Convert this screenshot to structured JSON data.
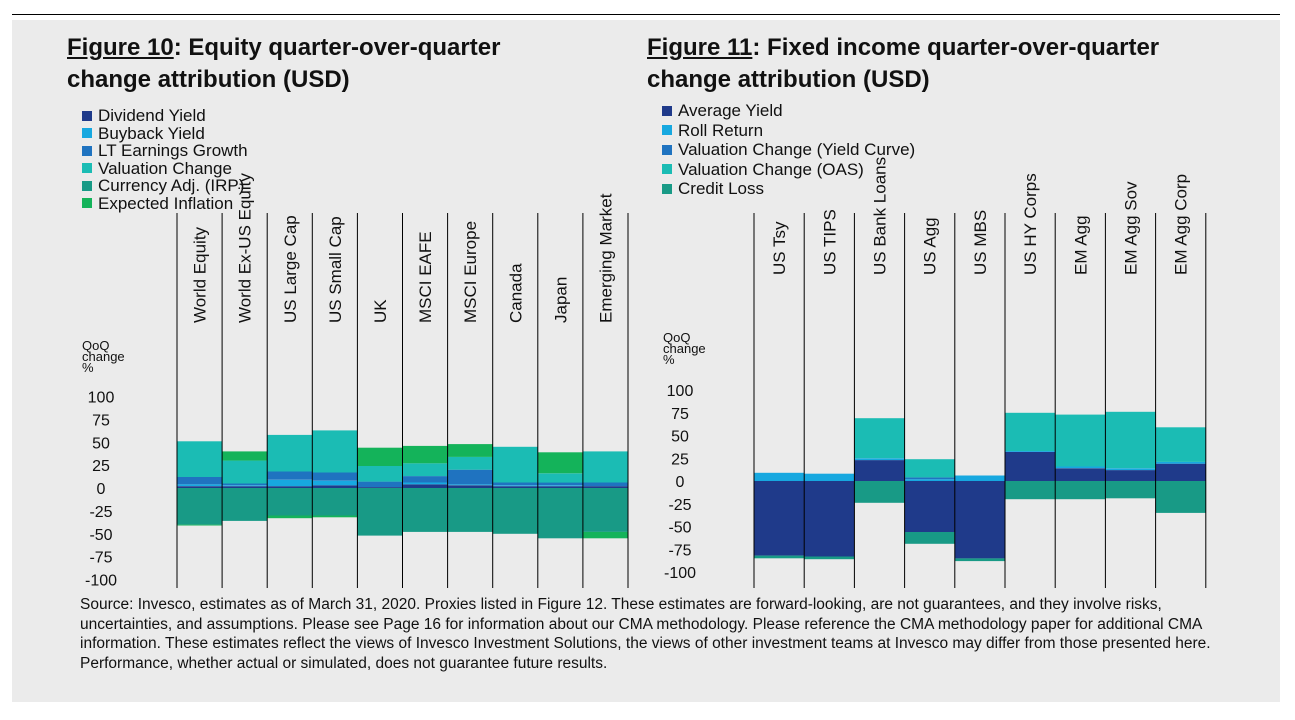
{
  "figures": {
    "eq": {
      "num": "Figure 10",
      "rest": ": Equity quarter-over-quarter change attribution (USD)"
    },
    "fi": {
      "num": "Figure 11",
      "rest": ": Fixed income quarter-over-quarter change attribution (USD)"
    }
  },
  "source_note": "Source: Invesco, estimates as of March 31, 2020. Proxies listed in Figure 12. These estimates are forward-looking, are not  guarantees, and they involve risks, uncertainties, and assumptions. Please see Page 16 for information about our CMA  methodology. Please reference the CMA methodology paper for additional CMA information. These estimates reflect the  views of Invesco Investment Solutions, the views of other investment teams at Invesco may differ from those presented  here. Performance, whether actual or simulated, does not guarantee future results.",
  "colors": {
    "navy": "#1f3a8a",
    "light_blue": "#17a8e0",
    "mid_blue": "#1f73c0",
    "teal": "#1bbcb4",
    "dark_teal": "#189a86",
    "green": "#14b35a"
  },
  "chart_data": [
    {
      "type": "bar",
      "stacked": true,
      "title": "Figure 10: Equity quarter-over-quarter change attribution (USD)",
      "ylabel": "QoQ change %",
      "ylim": [
        -100,
        100
      ],
      "yticks": [
        100,
        75,
        50,
        25,
        0,
        -25,
        -50,
        -75,
        -100
      ],
      "categories": [
        "World Equity",
        "World Ex-US Equity",
        "US Large Cap",
        "US Small Cap",
        "UK",
        "MSCI EAFE",
        "MSCI Europe",
        "Canada",
        "Japan",
        "Emerging Market"
      ],
      "legend_position": "top-left",
      "series": [
        {
          "name": "Dividend Yield",
          "color": "#1f3a8a",
          "values": [
            2,
            2,
            2,
            3,
            1,
            4,
            3,
            2,
            2,
            2
          ]
        },
        {
          "name": "Buyback Yield",
          "color": "#17a8e0",
          "values": [
            2,
            1,
            7,
            5,
            0,
            2,
            1,
            1,
            1,
            0
          ]
        },
        {
          "name": "LT Earnings Growth",
          "color": "#1f73c0",
          "values": [
            8,
            2,
            9,
            9,
            6,
            7,
            16,
            3,
            3,
            4
          ]
        },
        {
          "name": "Valuation Change",
          "color": "#1bbcb4",
          "values": [
            39,
            25,
            40,
            46,
            17,
            14,
            14,
            39,
            10,
            34
          ]
        },
        {
          "name": "Currency Adj. (IRP)",
          "color": "#189a86",
          "values": [
            -40,
            -36,
            -30,
            -30,
            -52,
            -48,
            -48,
            -50,
            -55,
            -48
          ]
        },
        {
          "name": "Expected Inflation",
          "color": "#14b35a",
          "values": [
            -1,
            10,
            -3,
            -2,
            20,
            19,
            14,
            0,
            23,
            -7
          ]
        }
      ]
    },
    {
      "type": "bar",
      "stacked": true,
      "title": "Figure 11: Fixed income quarter-over-quarter change attribution (USD)",
      "ylabel": "QoQ change %",
      "ylim": [
        -100,
        100
      ],
      "yticks": [
        100,
        75,
        50,
        25,
        0,
        -25,
        -50,
        -75,
        -100
      ],
      "categories": [
        "US Tsy",
        "US TIPS",
        "US Bank Loans",
        "US Agg",
        "US MBS",
        "US HY Corps",
        "EM Agg",
        "EM Agg Sov",
        "EM Agg Corp"
      ],
      "legend_position": "top-left",
      "series": [
        {
          "name": "Average Yield",
          "color": "#1f3a8a",
          "values": [
            -82,
            -83,
            23,
            -56,
            -85,
            32,
            14,
            12,
            19
          ]
        },
        {
          "name": "Roll Return",
          "color": "#17a8e0",
          "values": [
            9,
            8,
            2,
            2,
            6,
            1,
            2,
            2,
            2
          ]
        },
        {
          "name": "Valuation Change (Yield Curve)",
          "color": "#1f73c0",
          "values": [
            0,
            0,
            0,
            2,
            0,
            0,
            0,
            0,
            0
          ]
        },
        {
          "name": "Valuation Change (OAS)",
          "color": "#1bbcb4",
          "values": [
            0,
            0,
            44,
            20,
            0,
            42,
            57,
            62,
            38
          ]
        },
        {
          "name": "Credit Loss",
          "color": "#189a86",
          "values": [
            -3,
            -3,
            -24,
            -13,
            -3,
            -20,
            -20,
            -19,
            -35
          ]
        }
      ]
    }
  ]
}
